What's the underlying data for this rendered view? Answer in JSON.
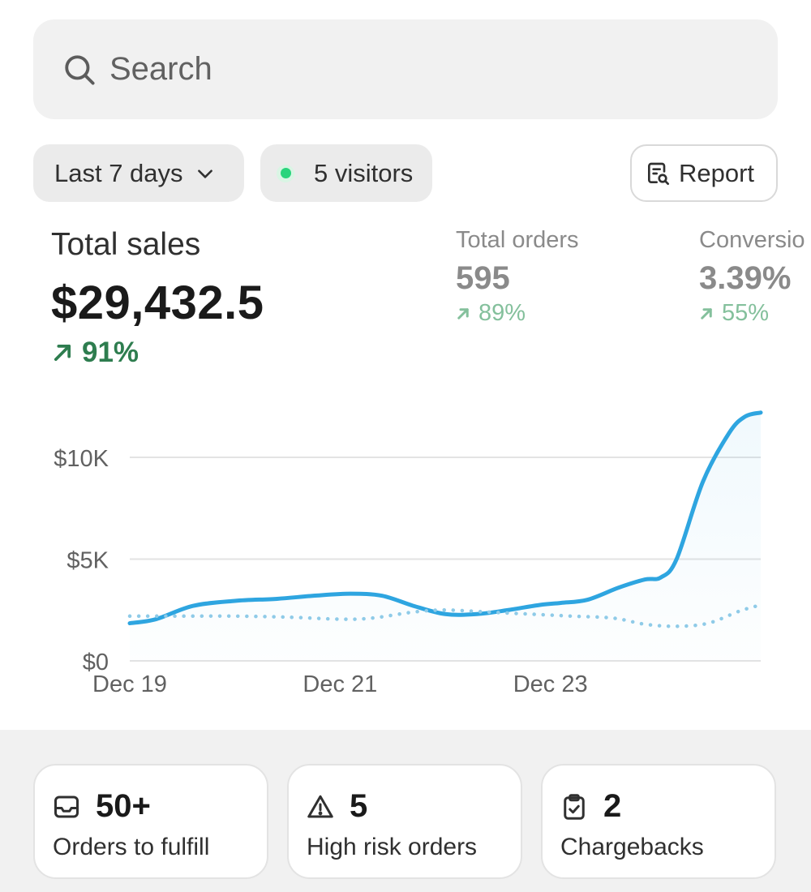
{
  "search": {
    "placeholder": "Search"
  },
  "filters": {
    "date_range": "Last 7 days",
    "visitors": "5 visitors",
    "report": "Report"
  },
  "metrics": {
    "total_sales": {
      "label": "Total sales",
      "value": "$29,432.5",
      "delta": "91%"
    },
    "total_orders": {
      "label": "Total orders",
      "value": "595",
      "delta": "89%"
    },
    "conversion": {
      "label": "Conversio",
      "value": "3.39%",
      "delta": "55%"
    }
  },
  "chart_data": {
    "type": "line",
    "title": "",
    "xlabel": "",
    "ylabel": "",
    "ylim": [
      0,
      13000
    ],
    "ytick_labels": [
      "$0",
      "$5K",
      "$10K"
    ],
    "yticks": [
      0,
      5000,
      10000
    ],
    "xtick_labels": [
      "Dec 19",
      "Dec 21",
      "Dec 23"
    ],
    "xticks": [
      0,
      2,
      4
    ],
    "grid": true,
    "series": [
      {
        "style": "solid",
        "color": "#2ea5e0",
        "x": [
          0,
          0.25,
          0.6,
          1.0,
          1.4,
          1.75,
          2.1,
          2.4,
          2.7,
          3.0,
          3.3,
          3.6,
          3.9,
          4.1,
          4.35,
          4.65,
          4.9,
          5.05,
          5.2,
          5.45,
          5.7,
          5.85,
          6.0
        ],
        "y": [
          1850,
          2050,
          2700,
          2950,
          3050,
          3200,
          3300,
          3200,
          2700,
          2300,
          2300,
          2500,
          2750,
          2850,
          3000,
          3600,
          4000,
          4100,
          5000,
          8800,
          11200,
          12000,
          12200
        ]
      },
      {
        "style": "dotted",
        "color": "#8fcbe8",
        "x": [
          0,
          0.5,
          1.0,
          1.5,
          2.0,
          2.3,
          2.7,
          3.0,
          3.4,
          3.8,
          4.2,
          4.6,
          4.9,
          5.2,
          5.5,
          5.8,
          6.0
        ],
        "y": [
          2200,
          2200,
          2200,
          2150,
          2050,
          2100,
          2400,
          2500,
          2400,
          2300,
          2200,
          2100,
          1800,
          1700,
          1850,
          2450,
          2750
        ]
      }
    ]
  },
  "summary_cards": [
    {
      "icon": "inbox-icon",
      "count": "50+",
      "label": "Orders to fulfill"
    },
    {
      "icon": "warning-icon",
      "count": "5",
      "label": "High risk orders"
    },
    {
      "icon": "clipboard-check-icon",
      "count": "2",
      "label": "Chargebacks"
    }
  ],
  "colors": {
    "accent_line": "#2ea5e0",
    "comparison_line": "#8fcbe8",
    "positive": "#2e7d4f",
    "positive_muted": "#84c09c",
    "status_dot": "#29d47c"
  }
}
